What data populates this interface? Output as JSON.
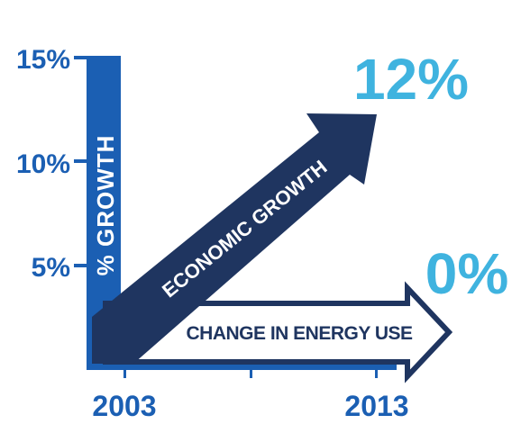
{
  "chart_data": {
    "type": "line",
    "title": "",
    "xlabel": "",
    "ylabel": "% GROWTH",
    "categories": [
      "2003",
      "2013"
    ],
    "ylim": [
      0,
      15
    ],
    "y_ticks": [
      "15%",
      "10%",
      "5%"
    ],
    "series": [
      {
        "name": "ECONOMIC GROWTH",
        "values": [
          0,
          12
        ],
        "end_label": "12%",
        "color": "#1f3560"
      },
      {
        "name": "CHANGE IN ENERGY USE",
        "values": [
          0,
          0
        ],
        "end_label": "0%",
        "color": "#1f3560"
      }
    ],
    "colors": {
      "axis": "#1b5fb3",
      "tick_labels": "#1b5fb3",
      "highlight": "#3fb3df",
      "arrow": "#1f3560",
      "outline_fill": "#ffffff"
    }
  }
}
